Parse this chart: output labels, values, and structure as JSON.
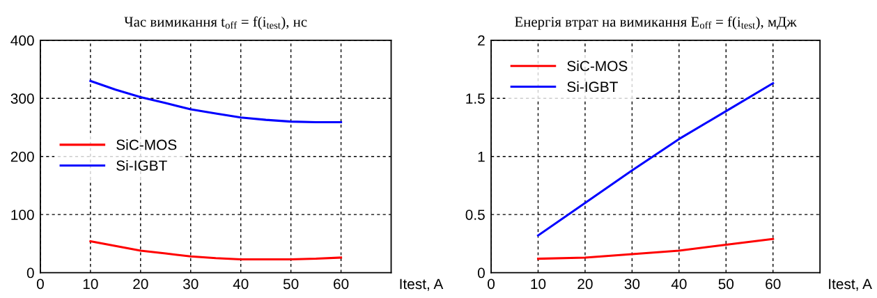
{
  "chart_data": [
    {
      "type": "line",
      "title": "Час вимикання t$_{off}$ = f(i$_{test}$), нс",
      "xlabel": "Itest, A",
      "x": [
        10,
        15,
        20,
        25,
        30,
        35,
        40,
        45,
        50,
        55,
        60
      ],
      "series": [
        {
          "name": "SiC-MOS",
          "color": "#ff0000",
          "values": [
            54,
            46,
            38,
            33,
            28,
            25,
            23,
            23,
            23,
            24,
            26
          ]
        },
        {
          "name": "Si-IGBT",
          "color": "#0000ff",
          "values": [
            330,
            315,
            302,
            292,
            281,
            274,
            267,
            263,
            260,
            259,
            259
          ]
        }
      ],
      "xlim": [
        0,
        70
      ],
      "xticks": [
        0,
        10,
        20,
        30,
        40,
        50,
        60
      ],
      "ylim": [
        0,
        400
      ],
      "yticks": [
        0,
        100,
        200,
        300,
        400
      ],
      "grid": true,
      "legend": "left",
      "line_style": "solid"
    },
    {
      "type": "line",
      "title": "Енергія втрат на вимикання E$_{off}$ = f(i$_{test}$), мДж",
      "xlabel": "Itest, A",
      "x": [
        10,
        20,
        30,
        40,
        50,
        60
      ],
      "series": [
        {
          "name": "SiC-MOS",
          "color": "#ff0000",
          "values": [
            0.12,
            0.13,
            0.16,
            0.19,
            0.24,
            0.29
          ]
        },
        {
          "name": "Si-IGBT",
          "color": "#0000ff",
          "values": [
            0.32,
            0.6,
            0.88,
            1.15,
            1.39,
            1.63
          ]
        }
      ],
      "xlim": [
        0,
        70
      ],
      "xticks": [
        0,
        10,
        20,
        30,
        40,
        50,
        60
      ],
      "ylim": [
        0,
        2
      ],
      "yticks": [
        0,
        0.5,
        1,
        1.5,
        2
      ],
      "grid": true,
      "legend": "top left",
      "line_style": "solid"
    }
  ]
}
